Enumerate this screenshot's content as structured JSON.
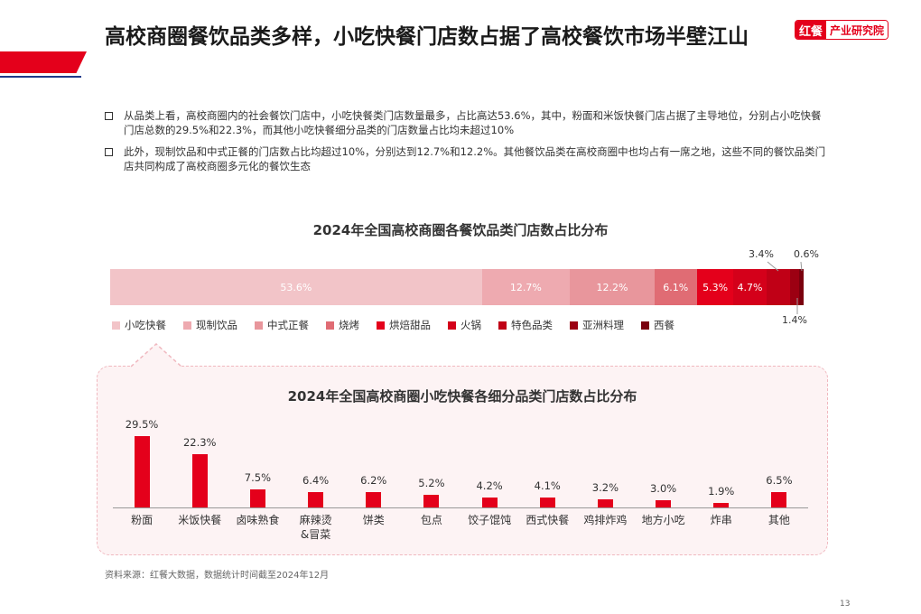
{
  "header": {
    "title": "高校商圈餐饮品类多样，小吃快餐门店数占据了高校餐饮市场半壁江山",
    "brand_logo": "红餐",
    "brand_text": "产业研究院"
  },
  "bullets": [
    "从品类上看，高校商圈内的社会餐饮门店中，小吃快餐类门店数量最多，占比高达53.6%，其中，粉面和米饭快餐门店占据了主导地位，分别占小吃快餐门店总数的29.5%和22.3%，而其他小吃快餐细分品类的门店数量占比均未超过10%",
    "此外，现制饮品和中式正餐的门店数占比均超过10%，分别达到12.7%和12.2%。其他餐饮品类在高校商圈中也均占有一席之地，这些不同的餐饮品类门店共同构成了高校商圈多元化的餐饮生态"
  ],
  "chart_data": [
    {
      "type": "bar",
      "orientation": "horizontal-stacked",
      "title": "2024年全国高校商圈各餐饮品类门店数占比分布",
      "series": [
        {
          "name": "小吃快餐",
          "value": 53.6,
          "label": "53.6%",
          "color": "#f2c4c8"
        },
        {
          "name": "现制饮品",
          "value": 12.7,
          "label": "12.7%",
          "color": "#eeaab0"
        },
        {
          "name": "中式正餐",
          "value": 12.2,
          "label": "12.2%",
          "color": "#e8969c"
        },
        {
          "name": "烧烤",
          "value": 6.1,
          "label": "6.1%",
          "color": "#e06c74"
        },
        {
          "name": "烘焙甜品",
          "value": 5.3,
          "label": "5.3%",
          "color": "#e4001b"
        },
        {
          "name": "火锅",
          "value": 4.7,
          "label": "4.7%",
          "color": "#d4001a"
        },
        {
          "name": "特色品类",
          "value": 3.4,
          "label": "3.4%",
          "color": "#c00016"
        },
        {
          "name": "亚洲料理",
          "value": 1.4,
          "label": "1.4%",
          "color": "#9c0012"
        },
        {
          "name": "西餐",
          "value": 0.6,
          "label": "0.6%",
          "color": "#7a000e"
        }
      ],
      "legend": "bottom"
    },
    {
      "type": "bar",
      "title": "2024年全国高校商圈小吃快餐各细分品类门店数占比分布",
      "categories": [
        "粉面",
        "米饭快餐",
        "卤味熟食",
        "麻辣烫\n&冒菜",
        "饼类",
        "包点",
        "饺子馄饨",
        "西式快餐",
        "鸡排炸鸡",
        "地方小吃",
        "炸串",
        "其他"
      ],
      "values": [
        29.5,
        22.3,
        7.5,
        6.4,
        6.2,
        5.2,
        4.2,
        4.1,
        3.2,
        3.0,
        1.9,
        6.5
      ],
      "value_labels": [
        "29.5%",
        "22.3%",
        "7.5%",
        "6.4%",
        "6.2%",
        "5.2%",
        "4.2%",
        "4.1%",
        "3.2%",
        "3.0%",
        "1.9%",
        "6.5%"
      ],
      "ylim": [
        0,
        30
      ],
      "bar_color": "#e4001b"
    }
  ],
  "footer": {
    "source": "资料来源：红餐大数据，数据统计时间截至2024年12月",
    "page": "13"
  }
}
